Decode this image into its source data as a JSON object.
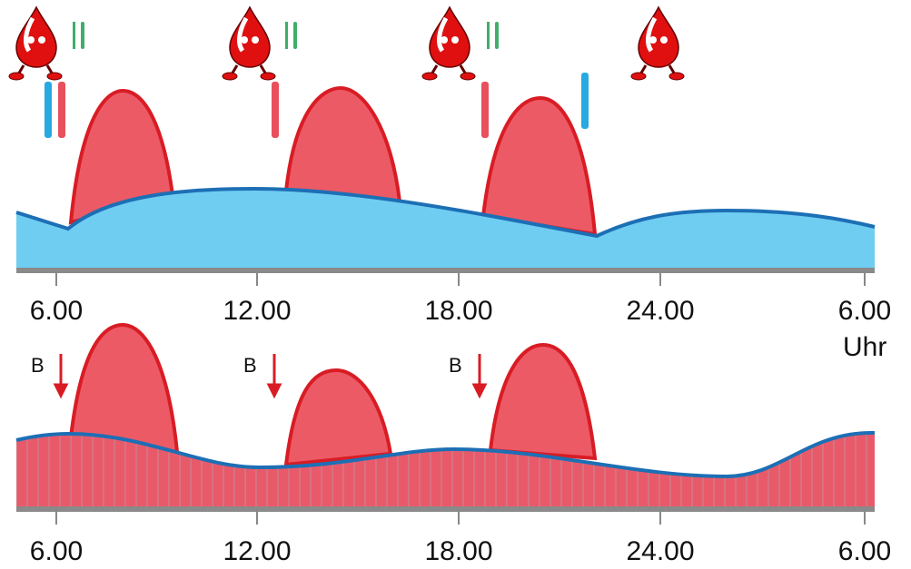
{
  "top_axis": {
    "labels": [
      "6.00",
      "12.00",
      "18.00",
      "24.00",
      "6.00"
    ],
    "unit": "Uhr"
  },
  "bottom_axis": {
    "labels": [
      "6.00",
      "12.00",
      "18.00",
      "24.00",
      "6.00"
    ]
  },
  "bolus_markers": [
    "B",
    "B",
    "B"
  ]
}
